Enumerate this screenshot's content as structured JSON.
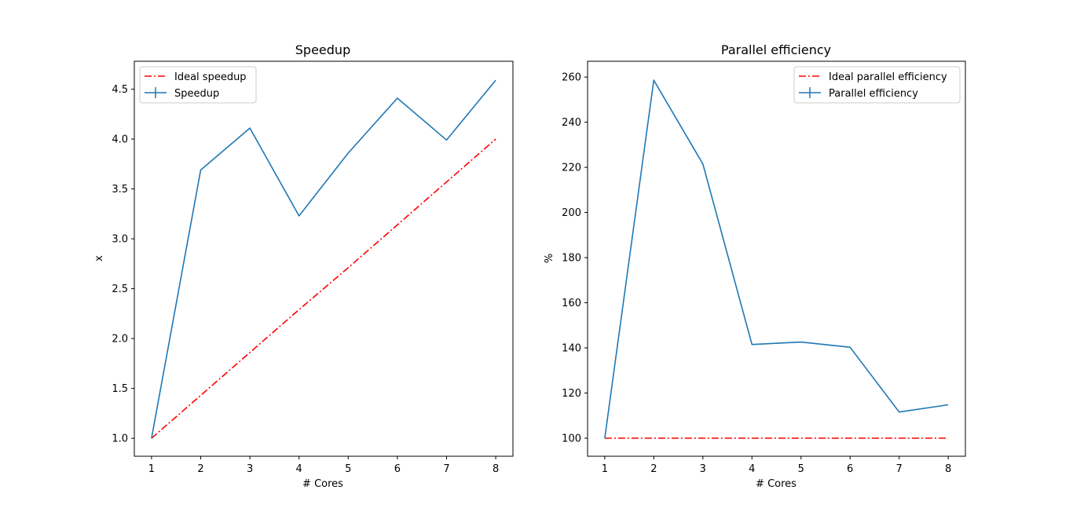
{
  "chart_data": [
    {
      "type": "line",
      "title": "Speedup",
      "xlabel": "# Cores",
      "ylabel": "x",
      "x": [
        1,
        2,
        3,
        4,
        5,
        6,
        7,
        8
      ],
      "xticks": [
        "1",
        "2",
        "3",
        "4",
        "5",
        "6",
        "7",
        "8"
      ],
      "yticks": [
        "1.0",
        "1.5",
        "2.0",
        "2.5",
        "3.0",
        "3.5",
        "4.0",
        "4.5"
      ],
      "xlim": [
        0.65,
        8.35
      ],
      "ylim": [
        0.82,
        4.78
      ],
      "legend_position": "upper-left",
      "series": [
        {
          "name": "Ideal speedup",
          "color": "#ff0000",
          "style": "dashdot",
          "values": [
            1.0,
            1.43,
            1.86,
            2.29,
            2.71,
            3.14,
            3.57,
            4.0
          ]
        },
        {
          "name": "Speedup",
          "color": "#1f77b4",
          "style": "solid",
          "values": [
            1.0,
            3.69,
            4.11,
            3.23,
            3.86,
            4.41,
            3.99,
            4.59
          ]
        }
      ]
    },
    {
      "type": "line",
      "title": "Parallel efficiency",
      "xlabel": "# Cores",
      "ylabel": "%",
      "x": [
        1,
        2,
        3,
        4,
        5,
        6,
        7,
        8
      ],
      "xticks": [
        "1",
        "2",
        "3",
        "4",
        "5",
        "6",
        "7",
        "8"
      ],
      "yticks": [
        "100",
        "120",
        "140",
        "160",
        "180",
        "200",
        "220",
        "240",
        "260"
      ],
      "xlim": [
        0.65,
        8.35
      ],
      "ylim": [
        92,
        267
      ],
      "legend_position": "upper-right",
      "series": [
        {
          "name": "Ideal parallel efficiency",
          "color": "#ff0000",
          "style": "dashdot",
          "values": [
            100,
            100,
            100,
            100,
            100,
            100,
            100,
            100
          ]
        },
        {
          "name": "Parallel efficiency",
          "color": "#1f77b4",
          "style": "solid",
          "values": [
            100,
            258.6,
            221.5,
            141.5,
            142.6,
            140.3,
            111.6,
            114.8
          ]
        }
      ]
    }
  ]
}
